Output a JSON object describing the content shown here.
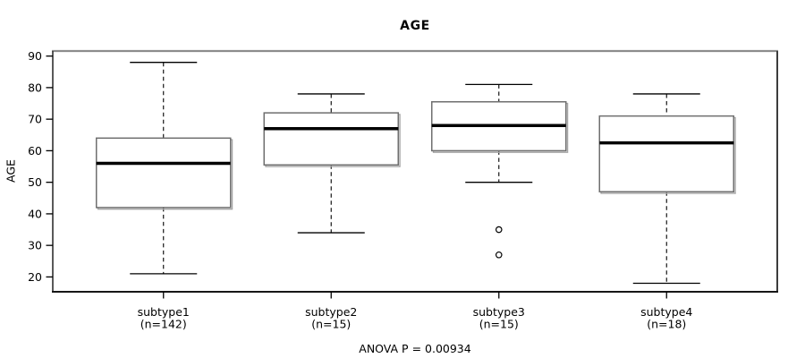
{
  "chart_data": {
    "type": "box",
    "title": "AGE",
    "ylabel": "AGE",
    "xlabel": "",
    "annotation": "ANOVA P = 0.00934",
    "legend": null,
    "grid": false,
    "y_ticks": [
      20,
      30,
      40,
      50,
      60,
      70,
      80,
      90
    ],
    "ylim": [
      15.3,
      91.6
    ],
    "groups": [
      {
        "label": "subtype1",
        "sublabel": "(n=142)",
        "whisker_low": 21,
        "q1": 42,
        "median": 56,
        "q3": 64,
        "whisker_high": 88,
        "outliers": []
      },
      {
        "label": "subtype2",
        "sublabel": "(n=15)",
        "whisker_low": 34,
        "q1": 55.5,
        "median": 67,
        "q3": 72,
        "whisker_high": 78,
        "outliers": []
      },
      {
        "label": "subtype3",
        "sublabel": "(n=15)",
        "whisker_low": 50,
        "q1": 60,
        "median": 68,
        "q3": 75.5,
        "whisker_high": 81,
        "outliers": [
          35,
          27
        ]
      },
      {
        "label": "subtype4",
        "sublabel": "(n=18)",
        "whisker_low": 18,
        "q1": 47,
        "median": 62.5,
        "q3": 71,
        "whisker_high": 78,
        "outliers": []
      }
    ],
    "colors": {
      "box_fill": "#ffffff",
      "box_stroke": "#6f6f6f",
      "median": "#000000",
      "whisker": "#000000",
      "frame_top": "#8c8c8c",
      "frame_side": "#3c3c3c",
      "frame_bottom": "#161616",
      "text": "#000000"
    }
  }
}
